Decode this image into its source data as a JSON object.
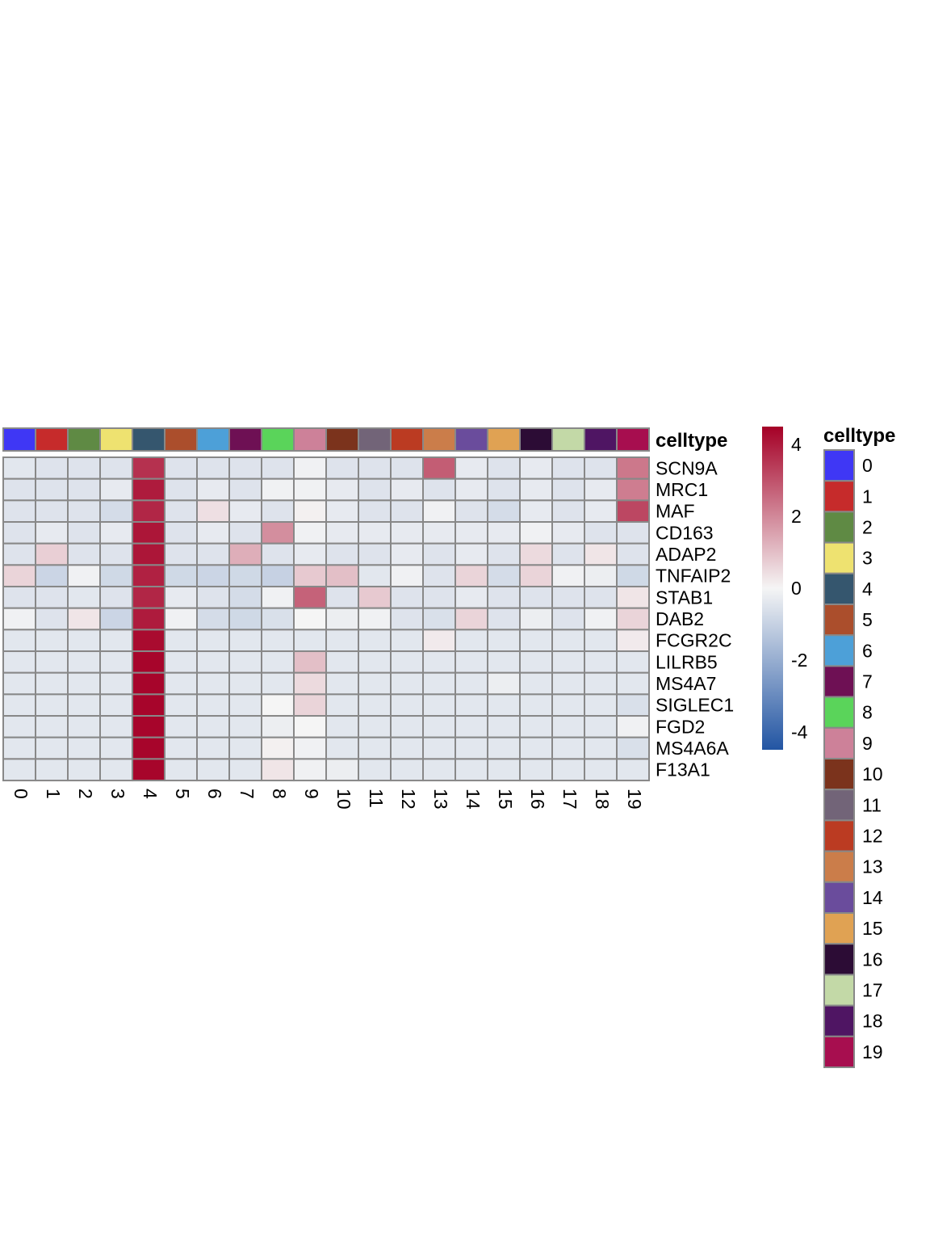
{
  "chart_data": {
    "type": "heatmap",
    "annotation_title": "celltype",
    "legend_title": "celltype",
    "columns": [
      "0",
      "1",
      "2",
      "3",
      "4",
      "5",
      "6",
      "7",
      "8",
      "9",
      "10",
      "11",
      "12",
      "13",
      "14",
      "15",
      "16",
      "17",
      "18",
      "19"
    ],
    "column_colors": [
      "#3F37F5",
      "#C62B2B",
      "#5F8A44",
      "#EEE270",
      "#35566E",
      "#AB4E2C",
      "#4DA0D8",
      "#6E1054",
      "#5AD45A",
      "#CD8199",
      "#7B331C",
      "#726478",
      "#BB3B22",
      "#CB7D4A",
      "#6A4C9C",
      "#E0A253",
      "#2C0C35",
      "#C3D9A7",
      "#4F1563",
      "#A70E4F"
    ],
    "rows": [
      "SCN9A",
      "MRC1",
      "MAF",
      "CD163",
      "ADAP2",
      "TNFAIP2",
      "STAB1",
      "DAB2",
      "FCGR2C",
      "LILRB5",
      "MS4A7",
      "SIGLEC1",
      "FGD2",
      "MS4A6A",
      "F13A1"
    ],
    "values": [
      [
        -0.4,
        -0.5,
        -0.5,
        -0.5,
        3.6,
        -0.5,
        -0.5,
        -0.5,
        -0.5,
        -0.1,
        -0.5,
        -0.5,
        -0.5,
        2.8,
        -0.3,
        -0.5,
        -0.3,
        -0.5,
        -0.5,
        2.3
      ],
      [
        -0.5,
        -0.5,
        -0.5,
        -0.3,
        4.0,
        -0.5,
        -0.3,
        -0.5,
        -0.1,
        -0.1,
        -0.3,
        -0.5,
        -0.3,
        -0.5,
        -0.3,
        -0.5,
        -0.3,
        -0.5,
        -0.3,
        2.2
      ],
      [
        -0.5,
        -0.5,
        -0.5,
        -0.7,
        3.8,
        -0.5,
        0.4,
        -0.3,
        -0.5,
        0.1,
        -0.3,
        -0.5,
        -0.5,
        -0.1,
        -0.5,
        -0.7,
        -0.3,
        -0.5,
        -0.3,
        3.2
      ],
      [
        -0.5,
        -0.3,
        -0.5,
        -0.3,
        4.1,
        -0.5,
        -0.3,
        -0.5,
        1.9,
        -0.1,
        -0.3,
        -0.3,
        -0.3,
        -0.3,
        -0.3,
        -0.3,
        -0.1,
        -0.3,
        -0.5,
        -0.5
      ],
      [
        -0.5,
        0.7,
        -0.5,
        -0.5,
        4.1,
        -0.5,
        -0.5,
        1.3,
        -0.5,
        -0.3,
        -0.5,
        -0.5,
        -0.3,
        -0.5,
        -0.3,
        -0.5,
        0.5,
        -0.5,
        0.3,
        -0.5
      ],
      [
        0.6,
        -0.9,
        -0.1,
        -0.8,
        3.9,
        -0.8,
        -0.9,
        -0.8,
        -1.0,
        0.8,
        1.0,
        -0.4,
        -0.1,
        -0.5,
        0.6,
        -0.7,
        0.6,
        -0.1,
        -0.2,
        -0.8
      ],
      [
        -0.5,
        -0.5,
        -0.4,
        -0.5,
        3.8,
        -0.3,
        -0.5,
        -0.7,
        -0.1,
        2.7,
        -0.5,
        0.8,
        -0.5,
        -0.5,
        -0.3,
        -0.5,
        -0.5,
        -0.5,
        -0.5,
        0.3
      ],
      [
        -0.1,
        -0.5,
        0.3,
        -0.9,
        4.0,
        -0.1,
        -0.7,
        -0.8,
        -0.6,
        0.0,
        -0.2,
        -0.1,
        -0.5,
        -0.6,
        0.6,
        -0.5,
        -0.2,
        -0.5,
        -0.1,
        0.6
      ],
      [
        -0.4,
        -0.4,
        -0.4,
        -0.4,
        4.3,
        -0.4,
        -0.4,
        -0.4,
        -0.4,
        -0.4,
        -0.4,
        -0.4,
        -0.4,
        0.2,
        -0.4,
        -0.4,
        -0.4,
        -0.4,
        -0.4,
        0.2
      ],
      [
        -0.4,
        -0.4,
        -0.4,
        -0.4,
        4.4,
        -0.4,
        -0.4,
        -0.4,
        -0.4,
        1.0,
        -0.4,
        -0.4,
        -0.4,
        -0.4,
        -0.4,
        -0.4,
        -0.4,
        -0.4,
        -0.4,
        -0.4
      ],
      [
        -0.4,
        -0.4,
        -0.4,
        -0.4,
        4.4,
        -0.4,
        -0.4,
        -0.4,
        -0.4,
        0.5,
        -0.4,
        -0.4,
        -0.4,
        -0.4,
        -0.4,
        -0.2,
        -0.4,
        -0.4,
        -0.4,
        -0.4
      ],
      [
        -0.4,
        -0.4,
        -0.4,
        -0.4,
        4.4,
        -0.4,
        -0.4,
        -0.4,
        0.0,
        0.6,
        -0.4,
        -0.4,
        -0.4,
        -0.4,
        -0.4,
        -0.4,
        -0.4,
        -0.4,
        -0.4,
        -0.6
      ],
      [
        -0.4,
        -0.4,
        -0.4,
        -0.4,
        4.4,
        -0.4,
        -0.4,
        -0.4,
        -0.2,
        0.0,
        -0.4,
        -0.4,
        -0.4,
        -0.4,
        -0.4,
        -0.4,
        -0.4,
        -0.4,
        -0.4,
        -0.1
      ],
      [
        -0.4,
        -0.4,
        -0.4,
        -0.4,
        4.4,
        -0.4,
        -0.4,
        -0.4,
        0.1,
        -0.1,
        -0.4,
        -0.4,
        -0.4,
        -0.4,
        -0.4,
        -0.4,
        -0.4,
        -0.4,
        -0.4,
        -0.6
      ],
      [
        -0.4,
        -0.4,
        -0.4,
        -0.4,
        4.4,
        -0.4,
        -0.4,
        -0.4,
        0.3,
        -0.1,
        -0.2,
        -0.4,
        -0.4,
        -0.4,
        -0.4,
        -0.4,
        -0.4,
        -0.4,
        -0.4,
        -0.4
      ]
    ],
    "colorbar": {
      "range": [
        -4.5,
        4.5
      ],
      "ticks": [
        4,
        2,
        0,
        -2,
        -4
      ],
      "tick_labels": [
        "4",
        "2",
        "0",
        "-2",
        "-4"
      ],
      "low_color": "#2255A3",
      "mid_color": "#F5F5F5",
      "high_color": "#A50026"
    },
    "grid_color": "#888888",
    "grid": true,
    "legend_placement": "right"
  }
}
